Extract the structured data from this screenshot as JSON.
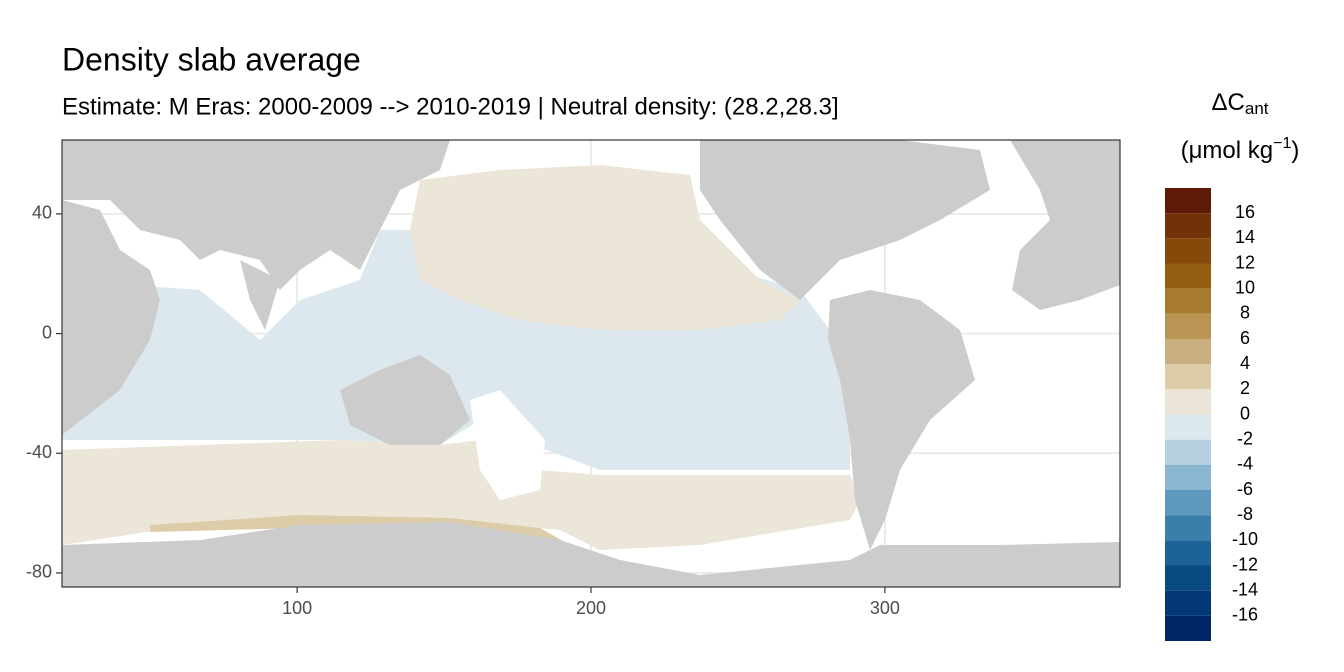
{
  "chart_data": {
    "type": "map",
    "title": "Density slab average",
    "subtitle": "Estimate: M Eras: 2000-2009 --> 2010-2019 | Neutral density: (28.2,28.3]",
    "xlim": [
      20,
      380
    ],
    "ylim": [
      -84.7,
      64.7
    ],
    "xticks": [
      100,
      200,
      300
    ],
    "yticks": [
      40,
      0,
      -40,
      -80
    ],
    "grid": true,
    "legend": {
      "title": "ΔC",
      "title_subscript": "ant",
      "unit": "(μmol kg",
      "unit_superscript": "−1",
      "unit_close": ")",
      "breaks": [
        18,
        16,
        14,
        12,
        10,
        8,
        6,
        4,
        2,
        0,
        -2,
        -4,
        -6,
        -8,
        -10,
        -12,
        -14,
        -16,
        -18
      ],
      "colors": [
        "#5e1a06",
        "#723108",
        "#854a0a",
        "#955f12",
        "#a87a2e",
        "#b99453",
        "#c9ae7e",
        "#dccda8",
        "#ece6d9",
        "#dde8ee",
        "#b5d0e0",
        "#8ab6d1",
        "#5f99bf",
        "#3a7fac",
        "#1b6396",
        "#0a4a83",
        "#033775",
        "#022566"
      ],
      "ticks": [
        16,
        14,
        12,
        10,
        8,
        6,
        4,
        2,
        0,
        -2,
        -4,
        -6,
        -8,
        -10,
        -12,
        -14,
        -16
      ]
    }
  }
}
